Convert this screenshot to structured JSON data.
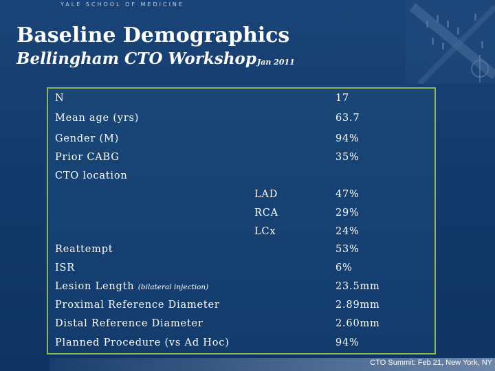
{
  "header": {
    "school": "YALE SCHOOL OF MEDICINE",
    "title": "Baseline Demographics",
    "subtitle": "Bellingham CTO Workshop",
    "date": "Jan 2011"
  },
  "table": {
    "rows": [
      {
        "label": "N",
        "value": "17"
      },
      {
        "label": "Mean age (yrs)",
        "value": "63.7"
      },
      {
        "label": "Gender (M)",
        "value": "94%"
      },
      {
        "label": "Prior CABG",
        "value": "35%"
      },
      {
        "label": "CTO location",
        "value": ""
      },
      {
        "sub": "LAD",
        "value": "47%"
      },
      {
        "sub": "RCA",
        "value": "29%"
      },
      {
        "sub": "LCx",
        "value": "24%"
      },
      {
        "label": "Reattempt",
        "value": "53%"
      },
      {
        "label": "ISR",
        "value": "6%"
      },
      {
        "label": "Lesion Length",
        "note": "(bilateral injection)",
        "value": "23.5mm"
      },
      {
        "label": "Proximal Reference Diameter",
        "value": "2.89mm"
      },
      {
        "label": "Distal Reference Diameter",
        "value": "2.60mm"
      },
      {
        "label": "Planned Procedure (vs Ad Hoc)",
        "value": "94%"
      }
    ]
  },
  "footer": {
    "text": "CTO Summit: Feb 21, New York, NY"
  },
  "icons": {
    "crest": "yale-crest-watermark-icon"
  },
  "colors": {
    "background": "#143b6c",
    "box_border": "#8ab84a",
    "text": "#ffffff"
  }
}
